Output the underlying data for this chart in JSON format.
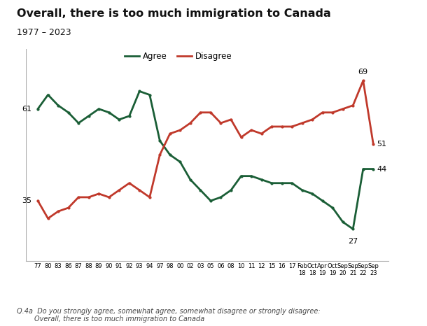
{
  "title": "Overall, there is too much immigration to Canada",
  "subtitle": "1977 – 2023",
  "footnote": "Q.4a  Do you strongly agree, somewhat agree, somewhat disagree or strongly disagree:\n        Overall, there is too much immigration to Canada",
  "x_labels": [
    "77",
    "80",
    "83",
    "86",
    "87",
    "88",
    "89",
    "90",
    "91",
    "92",
    "93",
    "94",
    "97",
    "98",
    "00",
    "02",
    "03",
    "05",
    "06",
    "08",
    "10",
    "11",
    "12",
    "15",
    "16",
    "17",
    "Feb\n18",
    "Oct\n18",
    "Apr\n19",
    "Oct\n19",
    "Sep\n20",
    "Sep\n21",
    "Sep\n22",
    "Sep\n23"
  ],
  "agree": [
    61,
    65,
    62,
    60,
    57,
    59,
    61,
    60,
    58,
    59,
    66,
    65,
    52,
    48,
    46,
    41,
    38,
    35,
    36,
    38,
    42,
    42,
    41,
    40,
    40,
    40,
    38,
    37,
    35,
    33,
    29,
    27,
    44,
    44
  ],
  "disagree": [
    35,
    30,
    32,
    33,
    36,
    36,
    37,
    36,
    38,
    40,
    38,
    36,
    48,
    54,
    55,
    57,
    60,
    60,
    57,
    58,
    53,
    55,
    54,
    56,
    56,
    56,
    57,
    58,
    60,
    60,
    61,
    62,
    69,
    51
  ],
  "agree_color": "#1a5e36",
  "disagree_color": "#c0392b",
  "bg_color": "#ffffff",
  "agree_label": "Agree",
  "disagree_label": "Disagree",
  "ylim": [
    18,
    78
  ],
  "linewidth": 2.0
}
